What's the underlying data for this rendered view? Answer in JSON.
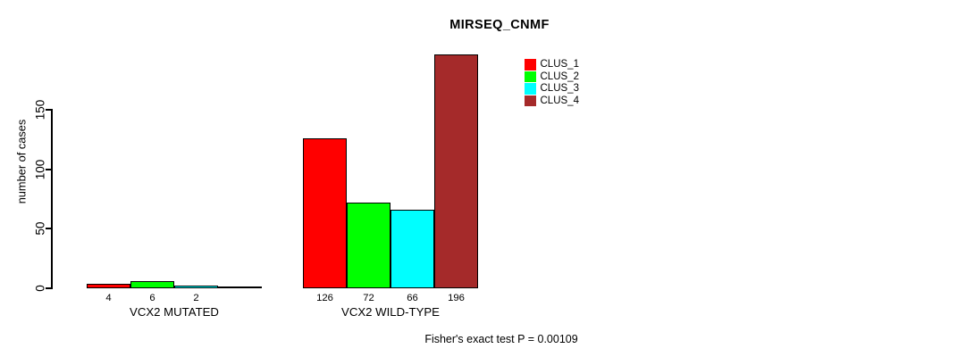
{
  "chart_data": {
    "type": "bar",
    "title": "MIRSEQ_CNMF",
    "ylabel": "number of cases",
    "xlabel": "",
    "ylim": [
      0,
      150
    ],
    "yticks": [
      0,
      50,
      100,
      150
    ],
    "grid": false,
    "legend_position": "upper-right",
    "categories": [
      "VCX2 MUTATED",
      "VCX2 WILD-TYPE"
    ],
    "series": [
      {
        "name": "CLUS_1",
        "color": "#ff0000",
        "values": [
          4,
          126
        ]
      },
      {
        "name": "CLUS_2",
        "color": "#00ff00",
        "values": [
          6,
          72
        ]
      },
      {
        "name": "CLUS_3",
        "color": "#00ffff",
        "values": [
          2,
          66
        ]
      },
      {
        "name": "CLUS_4",
        "color": "#a52a2a",
        "values": [
          0,
          196
        ]
      }
    ],
    "bar_value_labels": [
      [
        "4",
        "6",
        "2",
        ""
      ],
      [
        "126",
        "72",
        "66",
        "196"
      ]
    ],
    "footnote": "Fisher's exact test P = 0.00109"
  },
  "colors": {
    "background": "#ffffff",
    "axis": "#000000",
    "bar_border": "#000000",
    "text": "#000000"
  }
}
